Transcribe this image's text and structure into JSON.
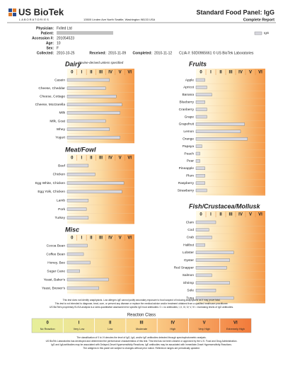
{
  "header": {
    "logo": "US BioTek",
    "logo_sub": "LABORATORIES",
    "address": "13500 Linden Ave North Seattle, Washington 98133 USA",
    "title": "Standard Food Panel: IgG",
    "subtitle": "Complete Report",
    "legend": "IgG"
  },
  "patient": {
    "physician_label": "Physician:",
    "physician": "Fxlled Ltd",
    "patient_label": "Patient:",
    "accession_label": "Accession #:",
    "accession": "201054523",
    "age_label": "Age:",
    "age": "10",
    "sex_label": "Sex:",
    "sex": "F",
    "collected_label": "Collected:",
    "collected": "2010-10-25",
    "received_label": "Received:",
    "received": "2010-11-09",
    "completed_label": "Completed:",
    "completed": "2010-11-12",
    "clia": "CLIA #: 50D0965661 © US BioTek Laboratories"
  },
  "scale_labels": [
    "0",
    "I",
    "II",
    "III",
    "IV",
    "V",
    "VI"
  ],
  "xlim": [
    0,
    7
  ],
  "panels": [
    {
      "title": "Dairy",
      "subtitle": "Bovine-derived unless specified",
      "items": [
        {
          "label": "Casein",
          "value": 4.4
        },
        {
          "label": "Cheese, Cheddar",
          "value": 4.0
        },
        {
          "label": "Cheese, Cottage",
          "value": 5.1
        },
        {
          "label": "Cheese, Mozzarella",
          "value": 5.7
        },
        {
          "label": "Milk",
          "value": 5.5
        },
        {
          "label": "Milk, Goat",
          "value": 4.0
        },
        {
          "label": "Whey",
          "value": 4.4
        },
        {
          "label": "Yogurt",
          "value": 5.5
        }
      ]
    },
    {
      "title": "Meat/Fowl",
      "items": [
        {
          "label": "Beef",
          "value": 2.2
        },
        {
          "label": "Chicken",
          "value": 2.9
        },
        {
          "label": "Egg White, Chicken",
          "value": 5.9
        },
        {
          "label": "Egg Yolk, Chicken",
          "value": 5.7
        },
        {
          "label": "Lamb",
          "value": 2.2
        },
        {
          "label": "Pork",
          "value": 2.0
        },
        {
          "label": "Turkey",
          "value": 2.2
        }
      ]
    },
    {
      "title": "Misc",
      "items": [
        {
          "label": "Cocoa Bean",
          "value": 2.1
        },
        {
          "label": "Coffee Bean",
          "value": 1.7
        },
        {
          "label": "Honey, Bee",
          "value": 2.4
        },
        {
          "label": "Sugar Cane",
          "value": 1.3
        },
        {
          "label": "Yeast, Baker's",
          "value": 4.3
        },
        {
          "label": "Yeast, Brewer's",
          "value": 3.3
        }
      ]
    },
    {
      "title": "Fruits",
      "items": [
        {
          "label": "Apple",
          "value": 0.9
        },
        {
          "label": "Apricot",
          "value": 1.1
        },
        {
          "label": "Banana",
          "value": 1.6
        },
        {
          "label": "Blueberry",
          "value": 0.9
        },
        {
          "label": "Cranberry",
          "value": 1.1
        },
        {
          "label": "Grape",
          "value": 1.1
        },
        {
          "label": "Grapefruit",
          "value": 4.9
        },
        {
          "label": "Lemon",
          "value": 4.5
        },
        {
          "label": "Orange",
          "value": 5.2
        },
        {
          "label": "Papaya",
          "value": 0.6
        },
        {
          "label": "Peach",
          "value": 0.4
        },
        {
          "label": "Pear",
          "value": 0.4
        },
        {
          "label": "Pineapple",
          "value": 0.9
        },
        {
          "label": "Plum",
          "value": 0.9
        },
        {
          "label": "Raspberry",
          "value": 0.9
        },
        {
          "label": "Strawberry",
          "value": 1.1
        }
      ]
    },
    {
      "title": "Fish/Crustacea/Mollusk",
      "items": [
        {
          "label": "Clam",
          "value": 2.0
        },
        {
          "label": "Cod",
          "value": 1.3
        },
        {
          "label": "Crab",
          "value": 1.6
        },
        {
          "label": "Halibut",
          "value": 0.9
        },
        {
          "label": "Lobster",
          "value": 3.8
        },
        {
          "label": "Oyster",
          "value": 3.4
        },
        {
          "label": "Red Snapper",
          "value": 3.1
        },
        {
          "label": "Salmon",
          "value": 1.6
        },
        {
          "label": "Shrimp",
          "value": 3.4
        },
        {
          "label": "Sole",
          "value": 2.0
        },
        {
          "label": "Tuna",
          "value": 3.8
        }
      ]
    }
  ],
  "notes_top": [
    "This test does not identify anaphylaxis. Low allergen-IgE cannot justify secondary exposure to food suspect of inducing anaphylaxis as it may prove fatal.",
    "This test is not intended to diagnose, treat, cure, or prevent any disease or replace the medical advice and/or treatment obtained from a qualified healthcare practitioner.",
    "US BioTek's proprietary ELISA analysis is a semi-quantitative assessment for specific IgG food antibodies: 0 = no antibodies; I, II, III, IV, V, VI = increasing levels of IgG antibodies."
  ],
  "reaction_class": {
    "title": "Reaction Class",
    "labels": [
      "No Reaction",
      "Very Low",
      "Low",
      "Moderate",
      "High",
      "Very High",
      "Extremely High"
    ]
  },
  "notes_bottom": [
    "The classification of 0 to VI denotes the level of IgG, IgA, and/or IgE antibodies detected through spectrophotometric analysis.",
    "US BioTek Laboratories has developed and determined the performance characteristics of this test. This test has not been cleared or approved by the U.S. Food and Drug Administration.",
    "IgG and IgA antibodies may be associated with Delayed-Onset Hypersensitivity Reactions; IgE antibodies may be associated with Immediate-Onset Hypersensitivity Reactions.",
    "The antigens in this panel are subject to changes without prior notice. Reference ranges are periodically updated."
  ]
}
